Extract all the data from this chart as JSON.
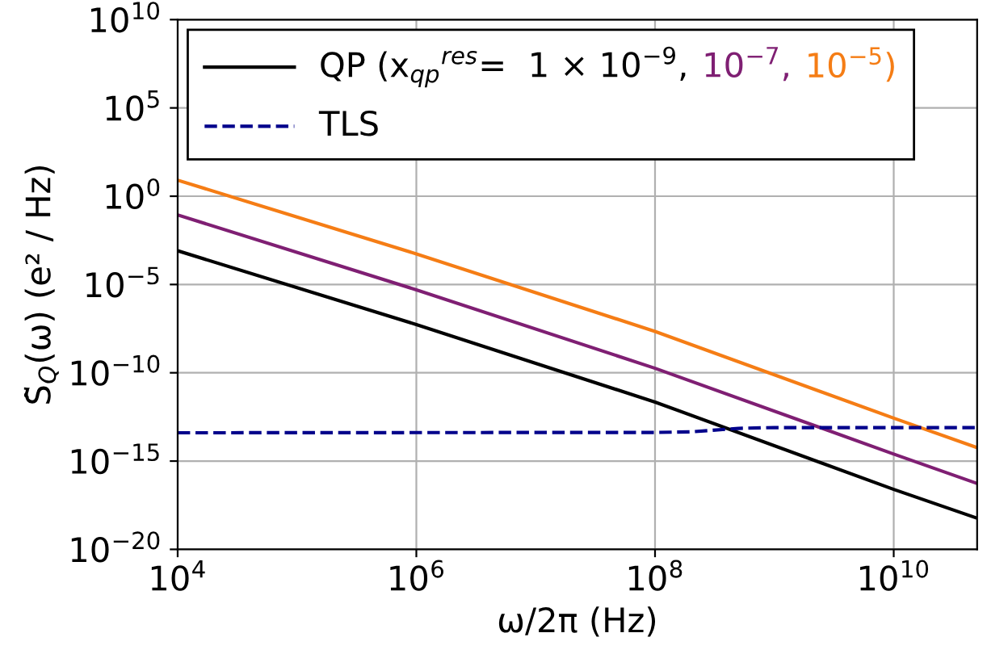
{
  "chart_data": {
    "type": "line",
    "xlabel": "ω/2π (Hz)",
    "ylabel": "S̃$_{Q}$(ω) (e² / Hz)",
    "log": "xy",
    "grid": true,
    "legend": "top left",
    "xlim": [
      10000.0,
      50000000000.0
    ],
    "xticks": [
      {
        "value": 10000.0,
        "label": "10$^{4}$"
      },
      {
        "value": 1000000.0,
        "label": "10$^{6}$"
      },
      {
        "value": 100000000.0,
        "label": "10$^{8}$"
      },
      {
        "value": 10000000000.0,
        "label": "10$^{10}$"
      }
    ],
    "ylim": [
      1e-20,
      10000000000.0
    ],
    "yticks": [
      {
        "value": 1e-20,
        "label": "10$^{−20}$"
      },
      {
        "value": 1e-15,
        "label": "10$^{−15}$"
      },
      {
        "value": 1e-10,
        "label": "10$^{−10}$"
      },
      {
        "value": 1e-05,
        "label": "10$^{−5}$"
      },
      {
        "value": 1,
        "label": "10$^{0}$"
      },
      {
        "value": 100000.0,
        "label": "10$^{5}$"
      },
      {
        "value": 10000000000.0,
        "label": "10$^{10}$"
      }
    ],
    "series": [
      {
        "name": "QP (x$_{qp}$$^{res}$=  1 × 10$^{−9}$,",
        "color": "#000000",
        "line_style": "solid",
        "x": [
          10000.0,
          1000000.0,
          100000000.0,
          10000000000.0,
          50000000000.0
        ],
        "values": [
          0.00081,
          5.4e-08,
          2.2e-12,
          2.5e-17,
          5.8e-19
        ]
      },
      {
        "name": "10$^{−7}$,",
        "color": "#7f1f73",
        "line_style": "solid",
        "x": [
          10000.0,
          1000000.0,
          100000000.0,
          10000000000.0,
          50000000000.0
        ],
        "values": [
          0.087,
          5e-06,
          1.8e-10,
          2.5e-15,
          5.4e-17
        ]
      },
      {
        "name": "10$^{−5}$)",
        "color": "#f57d15",
        "line_style": "solid",
        "x": [
          10000.0,
          1000000.0,
          100000000.0,
          10000000000.0,
          50000000000.0
        ],
        "values": [
          8.1,
          0.00054,
          2.2e-08,
          2.7e-13,
          5.8e-15
        ]
      },
      {
        "name": "TLS",
        "color": "#00008b",
        "line_style": "dashed",
        "x": [
          10000.0,
          100000000.0,
          200000000.0,
          500000000.0,
          1000000000.0,
          50000000000.0
        ],
        "values": [
          4e-14,
          4.2e-14,
          4.5e-14,
          7.1e-14,
          7.9e-14,
          7.9e-14
        ]
      }
    ]
  }
}
